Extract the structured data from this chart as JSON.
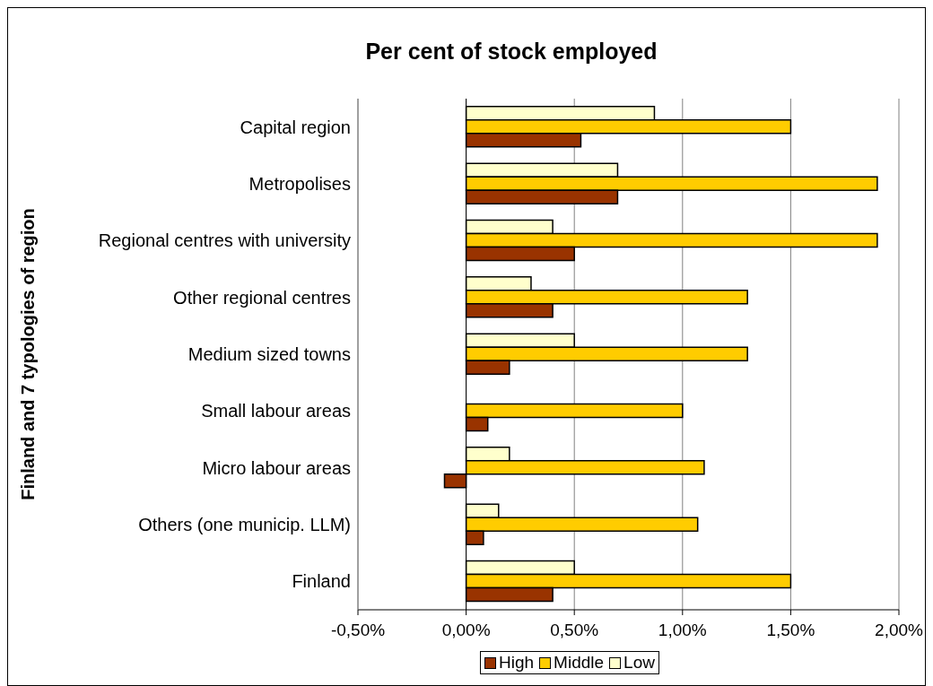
{
  "chart_data": {
    "type": "bar",
    "orientation": "horizontal",
    "title": "Per cent of stock employed",
    "ylabel": "Finland and 7 typologies of region",
    "categories": [
      "Capital region",
      "Metropolises",
      "Regional centres with university",
      "Other regional centres",
      "Medium sized towns",
      "Small labour areas",
      "Micro labour areas",
      "Others (one municip. LLM)",
      "Finland"
    ],
    "series": [
      {
        "name": "High",
        "color": "#993300",
        "values": [
          0.53,
          0.7,
          0.5,
          0.4,
          0.2,
          0.1,
          -0.1,
          0.08,
          0.4
        ]
      },
      {
        "name": "Middle",
        "color": "#ffcc00",
        "values": [
          1.5,
          1.9,
          1.9,
          1.3,
          1.3,
          1.0,
          1.1,
          1.07,
          1.5
        ]
      },
      {
        "name": "Low",
        "color": "#ffffcc",
        "values": [
          0.87,
          0.7,
          0.4,
          0.3,
          0.5,
          null,
          0.2,
          0.15,
          0.5
        ]
      }
    ],
    "xlim": [
      -0.5,
      2.0
    ],
    "xticks": [
      {
        "value": -0.5,
        "label": "-0,50%"
      },
      {
        "value": 0,
        "label": "0,00%"
      },
      {
        "value": 0.5,
        "label": "0,50%"
      },
      {
        "value": 1.0,
        "label": "1,00%"
      },
      {
        "value": 1.5,
        "label": "1,50%"
      },
      {
        "value": 2.0,
        "label": "2,00%"
      }
    ],
    "grid": "x",
    "legend": "bottom"
  }
}
